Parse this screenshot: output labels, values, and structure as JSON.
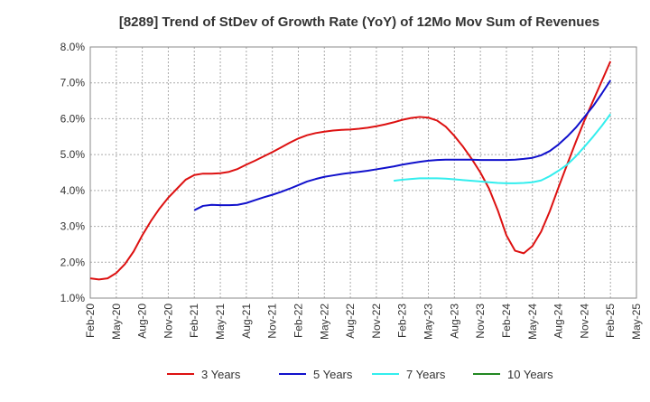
{
  "chart_data": {
    "type": "line",
    "title": "[8289]  Trend of StDev of Growth Rate (YoY) of 12Mo Mov Sum of Revenues",
    "xlabel": "",
    "ylabel": "",
    "ylim": [
      1.0,
      8.0
    ],
    "y_ticks": [
      "1.0%",
      "2.0%",
      "3.0%",
      "4.0%",
      "5.0%",
      "6.0%",
      "7.0%",
      "8.0%"
    ],
    "x_tick_labels": [
      "Feb-20",
      "May-20",
      "Aug-20",
      "Nov-20",
      "Feb-21",
      "May-21",
      "Aug-21",
      "Nov-21",
      "Feb-22",
      "May-22",
      "Aug-22",
      "Nov-22",
      "Feb-23",
      "May-23",
      "Aug-23",
      "Nov-23",
      "Feb-24",
      "May-24",
      "Aug-24",
      "Nov-24",
      "Feb-25",
      "May-25"
    ],
    "grid": true,
    "legend_position": "bottom",
    "series": [
      {
        "name": "3 Years",
        "color": "#dd1111",
        "points": [
          [
            0,
            1.55
          ],
          [
            1,
            1.52
          ],
          [
            2,
            1.55
          ],
          [
            3,
            1.7
          ],
          [
            4,
            1.95
          ],
          [
            5,
            2.3
          ],
          [
            6,
            2.75
          ],
          [
            7,
            3.15
          ],
          [
            8,
            3.5
          ],
          [
            9,
            3.8
          ],
          [
            10,
            4.05
          ],
          [
            11,
            4.3
          ],
          [
            12,
            4.43
          ],
          [
            13,
            4.47
          ],
          [
            14,
            4.47
          ],
          [
            15,
            4.48
          ],
          [
            16,
            4.52
          ],
          [
            17,
            4.6
          ],
          [
            18,
            4.72
          ],
          [
            19,
            4.83
          ],
          [
            20,
            4.95
          ],
          [
            21,
            5.07
          ],
          [
            22,
            5.2
          ],
          [
            23,
            5.33
          ],
          [
            24,
            5.45
          ],
          [
            25,
            5.54
          ],
          [
            26,
            5.6
          ],
          [
            27,
            5.64
          ],
          [
            28,
            5.67
          ],
          [
            29,
            5.69
          ],
          [
            30,
            5.7
          ],
          [
            31,
            5.72
          ],
          [
            32,
            5.75
          ],
          [
            33,
            5.79
          ],
          [
            34,
            5.84
          ],
          [
            35,
            5.9
          ],
          [
            36,
            5.97
          ],
          [
            37,
            6.02
          ],
          [
            38,
            6.05
          ],
          [
            39,
            6.03
          ],
          [
            40,
            5.95
          ],
          [
            41,
            5.78
          ],
          [
            42,
            5.52
          ],
          [
            43,
            5.22
          ],
          [
            44,
            4.88
          ],
          [
            45,
            4.5
          ],
          [
            46,
            4.05
          ],
          [
            47,
            3.45
          ],
          [
            48,
            2.75
          ],
          [
            49,
            2.32
          ],
          [
            50,
            2.25
          ],
          [
            51,
            2.45
          ],
          [
            52,
            2.85
          ],
          [
            53,
            3.42
          ],
          [
            54,
            4.08
          ],
          [
            55,
            4.72
          ],
          [
            56,
            5.35
          ],
          [
            57,
            5.95
          ],
          [
            58,
            6.5
          ],
          [
            59,
            7.05
          ],
          [
            60,
            7.6
          ]
        ]
      },
      {
        "name": "5 Years",
        "color": "#1111cc",
        "points": [
          [
            12,
            3.45
          ],
          [
            13,
            3.57
          ],
          [
            14,
            3.6
          ],
          [
            15,
            3.59
          ],
          [
            16,
            3.59
          ],
          [
            17,
            3.6
          ],
          [
            18,
            3.65
          ],
          [
            19,
            3.73
          ],
          [
            20,
            3.81
          ],
          [
            21,
            3.88
          ],
          [
            22,
            3.96
          ],
          [
            23,
            4.05
          ],
          [
            24,
            4.15
          ],
          [
            25,
            4.25
          ],
          [
            26,
            4.32
          ],
          [
            27,
            4.38
          ],
          [
            28,
            4.42
          ],
          [
            29,
            4.46
          ],
          [
            30,
            4.49
          ],
          [
            31,
            4.52
          ],
          [
            32,
            4.55
          ],
          [
            33,
            4.59
          ],
          [
            34,
            4.63
          ],
          [
            35,
            4.67
          ],
          [
            36,
            4.72
          ],
          [
            37,
            4.76
          ],
          [
            38,
            4.8
          ],
          [
            39,
            4.83
          ],
          [
            40,
            4.85
          ],
          [
            41,
            4.86
          ],
          [
            42,
            4.86
          ],
          [
            43,
            4.86
          ],
          [
            44,
            4.86
          ],
          [
            45,
            4.85
          ],
          [
            46,
            4.85
          ],
          [
            47,
            4.85
          ],
          [
            48,
            4.85
          ],
          [
            49,
            4.86
          ],
          [
            50,
            4.88
          ],
          [
            51,
            4.91
          ],
          [
            52,
            4.98
          ],
          [
            53,
            5.1
          ],
          [
            54,
            5.28
          ],
          [
            55,
            5.5
          ],
          [
            56,
            5.75
          ],
          [
            57,
            6.05
          ],
          [
            58,
            6.35
          ],
          [
            59,
            6.7
          ],
          [
            60,
            7.07
          ]
        ]
      },
      {
        "name": "7 Years",
        "color": "#33eeee",
        "points": [
          [
            35,
            4.27
          ],
          [
            36,
            4.3
          ],
          [
            37,
            4.32
          ],
          [
            38,
            4.34
          ],
          [
            39,
            4.34
          ],
          [
            40,
            4.34
          ],
          [
            41,
            4.33
          ],
          [
            42,
            4.31
          ],
          [
            43,
            4.29
          ],
          [
            44,
            4.27
          ],
          [
            45,
            4.25
          ],
          [
            46,
            4.23
          ],
          [
            47,
            4.21
          ],
          [
            48,
            4.2
          ],
          [
            49,
            4.2
          ],
          [
            50,
            4.21
          ],
          [
            51,
            4.23
          ],
          [
            52,
            4.28
          ],
          [
            53,
            4.4
          ],
          [
            54,
            4.55
          ],
          [
            55,
            4.72
          ],
          [
            56,
            4.95
          ],
          [
            57,
            5.22
          ],
          [
            58,
            5.5
          ],
          [
            59,
            5.8
          ],
          [
            60,
            6.13
          ]
        ]
      },
      {
        "name": "10 Years",
        "color": "#228822",
        "points": []
      }
    ]
  }
}
